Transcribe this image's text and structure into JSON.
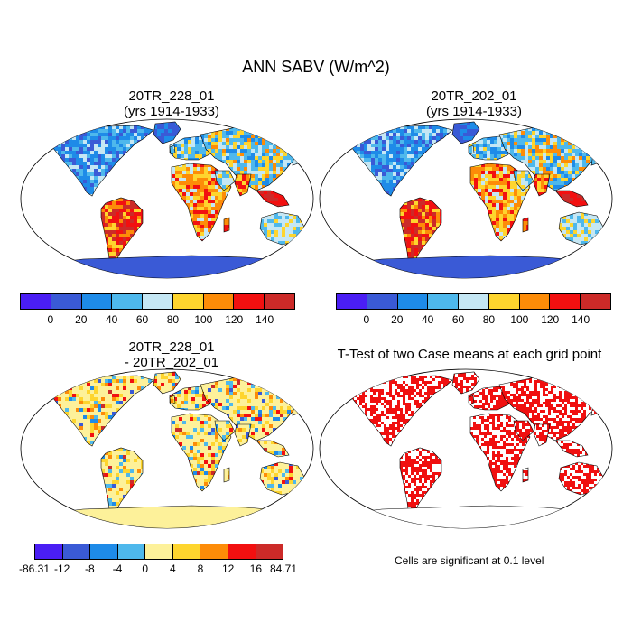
{
  "title": "ANN SABV (W/m^2)",
  "panels": {
    "p1": {
      "line1": "20TR_228_01",
      "line2": "(yrs 1914-1933)"
    },
    "p2": {
      "line1": "20TR_202_01",
      "line2": "(yrs 1914-1933)"
    },
    "p3": {
      "line1": "20TR_228_01",
      "line2": "- 20TR_202_01"
    },
    "p4": {
      "line1": "T-Test of two Case means at each grid point",
      "note": "Cells are significant at 0.1 level"
    }
  },
  "colorbar_top": {
    "colors": [
      "#4a1ef4",
      "#3a5ad6",
      "#1e8be8",
      "#4eb8ec",
      "#c5e7f4",
      "#fed52e",
      "#fd8c08",
      "#f21010",
      "#cc2a28"
    ],
    "labels": [
      "0",
      "20",
      "40",
      "60",
      "80",
      "100",
      "120",
      "140"
    ]
  },
  "colorbar_diff": {
    "colors": [
      "#4a1ef4",
      "#3a5ad6",
      "#1e8be8",
      "#4eb8ec",
      "#fdf19a",
      "#fed52e",
      "#fd8c08",
      "#f21010",
      "#cc2a28"
    ],
    "labels": [
      "-86.31",
      "-12",
      "-8",
      "-4",
      "0",
      "4",
      "8",
      "12",
      "16",
      "84.71"
    ]
  },
  "map_colors": {
    "ocean": "#ffffff",
    "antarctica_abs": "#3a5ad6",
    "antarctica_diff": "#fdf19a",
    "significant": "#f01010"
  }
}
